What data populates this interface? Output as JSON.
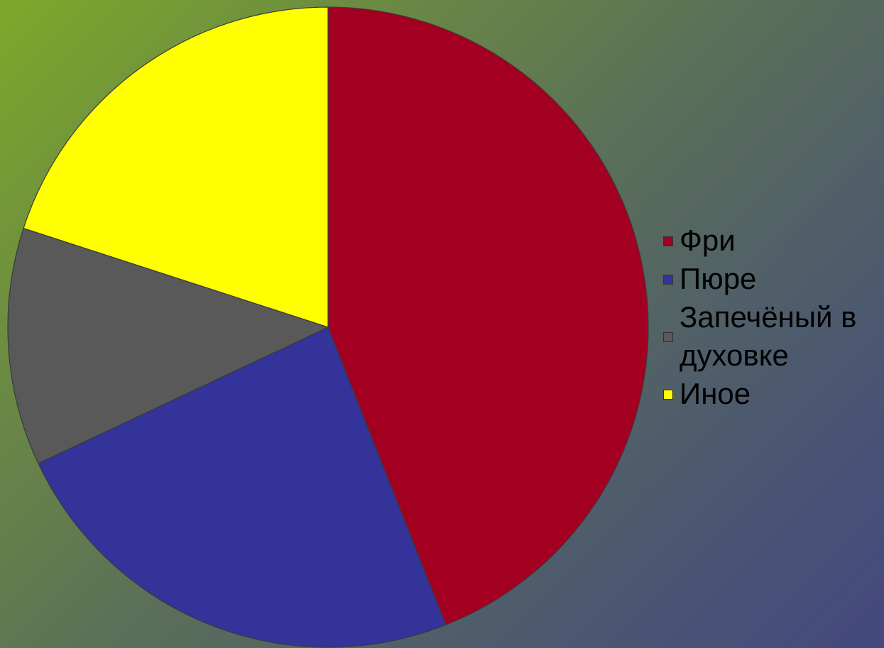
{
  "chart_data": {
    "type": "pie",
    "title": "",
    "slices": [
      {
        "label": "Фри",
        "value": 44,
        "color": "#a30021"
      },
      {
        "label": "Пюре",
        "value": 24,
        "color": "#333399"
      },
      {
        "label": "Запечёный в духовке",
        "value": 12,
        "color": "#595959"
      },
      {
        "label": "Иное",
        "value": 20,
        "color": "#ffff00"
      }
    ],
    "start_angle_deg": 0,
    "direction": "clockwise",
    "legend_position": "right"
  }
}
